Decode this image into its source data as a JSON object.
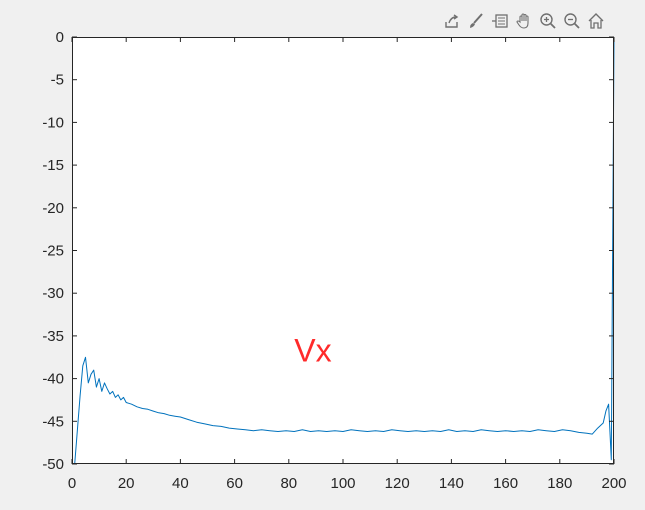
{
  "toolbar": {
    "icons": [
      "export-icon",
      "brush-icon",
      "datatip-icon",
      "pan-icon",
      "zoom-in-icon",
      "zoom-out-icon",
      "home-icon"
    ]
  },
  "colors": {
    "line": "#0072bd",
    "annotation": "#ff2a2a",
    "background": "#f0f0f0",
    "axes": "#ffffff"
  },
  "chart_data": {
    "type": "line",
    "title": "",
    "xlabel": "",
    "ylabel": "",
    "xlim": [
      0,
      200
    ],
    "ylim": [
      -50,
      0
    ],
    "grid": false,
    "annotation": "Vx",
    "xticks": [
      0,
      20,
      40,
      60,
      80,
      100,
      120,
      140,
      160,
      180,
      200
    ],
    "yticks": [
      0,
      -5,
      -10,
      -15,
      -20,
      -25,
      -30,
      -35,
      -40,
      -45,
      -50
    ],
    "series": [
      {
        "x": [
          1,
          2,
          3,
          4,
          5,
          6,
          7,
          8,
          9,
          10,
          11,
          12,
          13,
          14,
          15,
          16,
          17,
          18,
          19,
          20,
          22,
          24,
          26,
          28,
          30,
          32,
          34,
          36,
          38,
          40,
          43,
          46,
          49,
          52,
          55,
          58,
          61,
          64,
          67,
          70,
          73,
          76,
          79,
          82,
          85,
          88,
          91,
          94,
          97,
          100,
          103,
          106,
          109,
          112,
          115,
          118,
          121,
          124,
          127,
          130,
          133,
          136,
          139,
          142,
          145,
          148,
          151,
          154,
          157,
          160,
          163,
          166,
          169,
          172,
          175,
          178,
          181,
          184,
          187,
          190,
          192,
          194,
          196,
          197,
          198,
          199,
          200
        ],
        "y": [
          -50,
          -46,
          -42,
          -38.5,
          -37.5,
          -40.5,
          -39.5,
          -39,
          -41,
          -40,
          -41.5,
          -40.5,
          -41.2,
          -41.8,
          -41.5,
          -42.2,
          -41.9,
          -42.5,
          -42.2,
          -42.8,
          -43,
          -43.3,
          -43.5,
          -43.6,
          -43.8,
          -44,
          -44.1,
          -44.3,
          -44.4,
          -44.5,
          -44.8,
          -45.1,
          -45.3,
          -45.5,
          -45.6,
          -45.8,
          -45.9,
          -46,
          -46.1,
          -46,
          -46.1,
          -46.2,
          -46.1,
          -46.2,
          -46,
          -46.2,
          -46.1,
          -46.2,
          -46.1,
          -46.2,
          -46,
          -46.1,
          -46.2,
          -46.1,
          -46.2,
          -46,
          -46.1,
          -46.2,
          -46.1,
          -46.2,
          -46.1,
          -46.2,
          -46,
          -46.2,
          -46.1,
          -46.2,
          -46,
          -46.1,
          -46.2,
          -46.1,
          -46.2,
          -46.1,
          -46.2,
          -46,
          -46.1,
          -46.2,
          -46,
          -46.1,
          -46.3,
          -46.4,
          -46.5,
          -45.8,
          -45.2,
          -43.8,
          -43,
          -49.5,
          0
        ]
      }
    ]
  }
}
